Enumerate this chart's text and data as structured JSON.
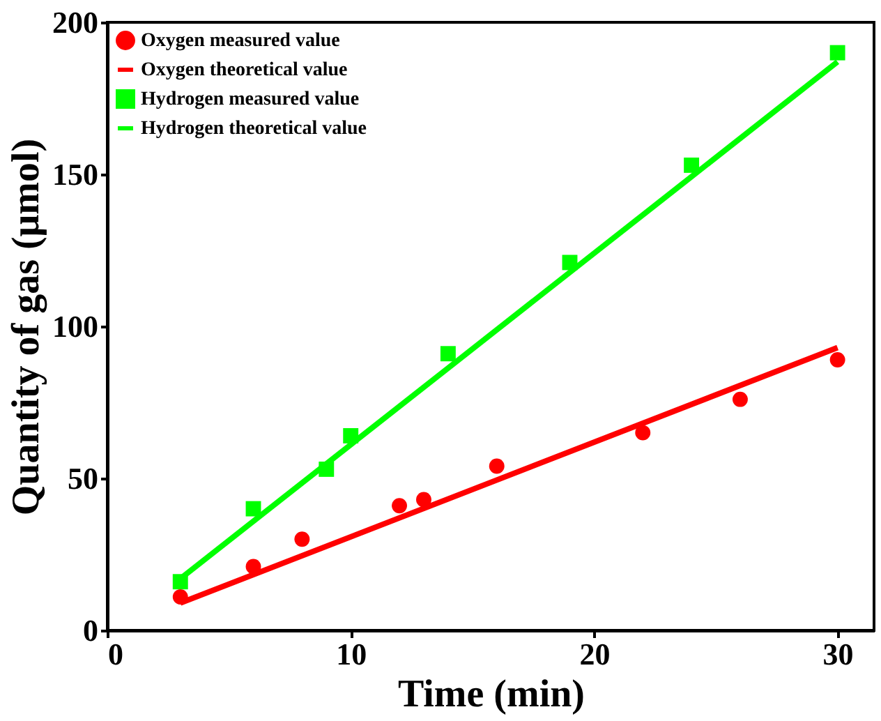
{
  "chart_data": {
    "type": "scatter",
    "xlabel": "Time (min)",
    "ylabel": "Quantity of gas (μmol)",
    "series": [
      {
        "name": "Oxygen measured value",
        "marker": "circle",
        "color": "#ff0000",
        "x": [
          3,
          6,
          8,
          12,
          13,
          16,
          22,
          26,
          30
        ],
        "values": [
          11,
          21,
          30,
          41,
          43,
          54,
          65,
          76,
          89
        ]
      },
      {
        "name": "Oxygen theoretical value",
        "type": "line",
        "color": "#ff0000",
        "x": [
          3,
          30
        ],
        "values": [
          9,
          93
        ]
      },
      {
        "name": "Hydrogen measured value",
        "marker": "square",
        "color": "#00ff00",
        "x": [
          3,
          6,
          9,
          10,
          14,
          19,
          24,
          30
        ],
        "values": [
          16,
          40,
          53,
          64,
          91,
          121,
          153,
          190
        ]
      },
      {
        "name": "Hydrogen theoretical value",
        "type": "line",
        "color": "#00ff00",
        "x": [
          3,
          30
        ],
        "values": [
          17,
          187
        ]
      }
    ],
    "xlim": [
      0,
      31.5
    ],
    "xticks": [
      0,
      10,
      20,
      30
    ],
    "ylim": [
      0,
      200
    ],
    "yticks": [
      0,
      50,
      100,
      150,
      200
    ],
    "grid": false,
    "legend": "top left"
  }
}
